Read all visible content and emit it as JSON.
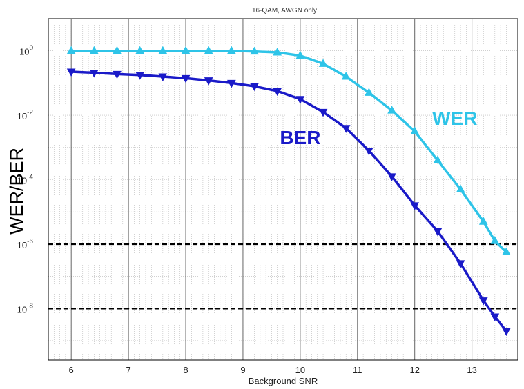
{
  "chart_data": {
    "type": "line",
    "title": "16-QAM, AWGN only",
    "xlabel": "Background SNR",
    "ylabel": "WER/BER",
    "xlim": [
      5.6,
      13.8
    ],
    "ylim_log10": [
      -9.6,
      1.0
    ],
    "yscale": "log",
    "grid": true,
    "x_ticks": [
      "6",
      "7",
      "8",
      "9",
      "10",
      "11",
      "12",
      "13"
    ],
    "y_ticks": [
      {
        "base": "10",
        "exp": "0"
      },
      {
        "base": "10",
        "exp": "-2"
      },
      {
        "base": "10",
        "exp": "-4"
      },
      {
        "base": "10",
        "exp": "-6"
      },
      {
        "base": "10",
        "exp": "-8"
      }
    ],
    "reference_lines_log10": [
      -6,
      -8
    ],
    "series": [
      {
        "name": "WER",
        "color": "#2ec4e8",
        "marker": "triangle-up",
        "x": [
          6.0,
          6.4,
          6.8,
          7.2,
          7.6,
          8.0,
          8.4,
          8.8,
          9.2,
          9.6,
          10.0,
          10.4,
          10.8,
          11.2,
          11.6,
          12.0,
          12.4,
          12.8,
          13.2,
          13.4,
          13.6
        ],
        "log10_y": [
          0.0,
          0.0,
          0.0,
          0.0,
          0.0,
          0.0,
          0.0,
          0.0,
          -0.02,
          -0.05,
          -0.15,
          -0.4,
          -0.8,
          -1.3,
          -1.85,
          -2.5,
          -3.4,
          -4.3,
          -5.3,
          -5.9,
          -6.25
        ]
      },
      {
        "name": "BER",
        "color": "#1a1ac8",
        "marker": "triangle-down",
        "x": [
          6.0,
          6.4,
          6.8,
          7.2,
          7.6,
          8.0,
          8.4,
          8.8,
          9.2,
          9.6,
          10.0,
          10.4,
          10.8,
          11.2,
          11.6,
          12.0,
          12.4,
          12.8,
          13.2,
          13.4,
          13.6
        ],
        "log10_y": [
          -0.65,
          -0.68,
          -0.72,
          -0.75,
          -0.8,
          -0.85,
          -0.92,
          -1.0,
          -1.1,
          -1.25,
          -1.5,
          -1.9,
          -2.4,
          -3.1,
          -3.9,
          -4.8,
          -5.6,
          -6.6,
          -7.75,
          -8.25,
          -8.7
        ]
      }
    ],
    "annotations": [
      {
        "text": "WER",
        "color": "#2ec4e8",
        "x": 12.7,
        "log10_y": -2.3
      },
      {
        "text": "BER",
        "color": "#1a1ac8",
        "x": 10.0,
        "log10_y": -2.9
      }
    ]
  }
}
